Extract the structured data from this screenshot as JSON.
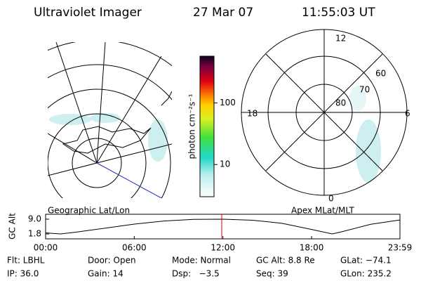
{
  "header": {
    "title": "Ultraviolet Imager",
    "date": "27 Mar 07",
    "time": "11:55:03 UT"
  },
  "map": {
    "caption": "Geographic Lat/Lon"
  },
  "colorbar": {
    "label": "photon cm⁻²s⁻¹",
    "lim": [
      3,
      575
    ],
    "log": true,
    "ticks": [
      10,
      100
    ]
  },
  "polar": {
    "caption": "Apex MLat/MLT",
    "mlt_labels": [
      "12",
      "18",
      "6",
      "0"
    ],
    "lat_labels": [
      "80",
      "70",
      "60"
    ]
  },
  "altitude": {
    "ylabel": "GC Alt",
    "ylim": [
      -0.6,
      11.4
    ],
    "yticks": [
      {
        "value": 9,
        "label": "9.0"
      },
      {
        "value": 1.8,
        "label": "1.8"
      }
    ],
    "xlim": [
      0,
      23.98
    ],
    "xticks": [
      {
        "value": 0,
        "label": "00:00"
      },
      {
        "value": 6,
        "label": "06:00"
      },
      {
        "value": 12,
        "label": "12:00"
      },
      {
        "value": 18,
        "label": "18:00"
      },
      {
        "value": 23.98,
        "label": "23:59"
      }
    ],
    "x": [
      0,
      1,
      2,
      4,
      6,
      8,
      10,
      12,
      14,
      16,
      18,
      19.4,
      20,
      22,
      23.98
    ],
    "values": [
      2.3,
      1.8,
      2.6,
      4.6,
      6.6,
      8.1,
      8.9,
      9.0,
      8.5,
      7.0,
      4.0,
      1.8,
      2.8,
      6.5,
      8.6
    ],
    "current": 11.92
  },
  "info": {
    "rows": [
      [
        "Flt: LBHL",
        "Door: Open",
        "Mode: Normal",
        "GC Alt: 8.8 Re",
        "GLat: −74.1"
      ],
      [
        "IP: 36.0",
        "Gain: 14",
        "Dsp:   −3.5",
        "Seq: 39",
        "GLon: 235.2"
      ]
    ]
  }
}
